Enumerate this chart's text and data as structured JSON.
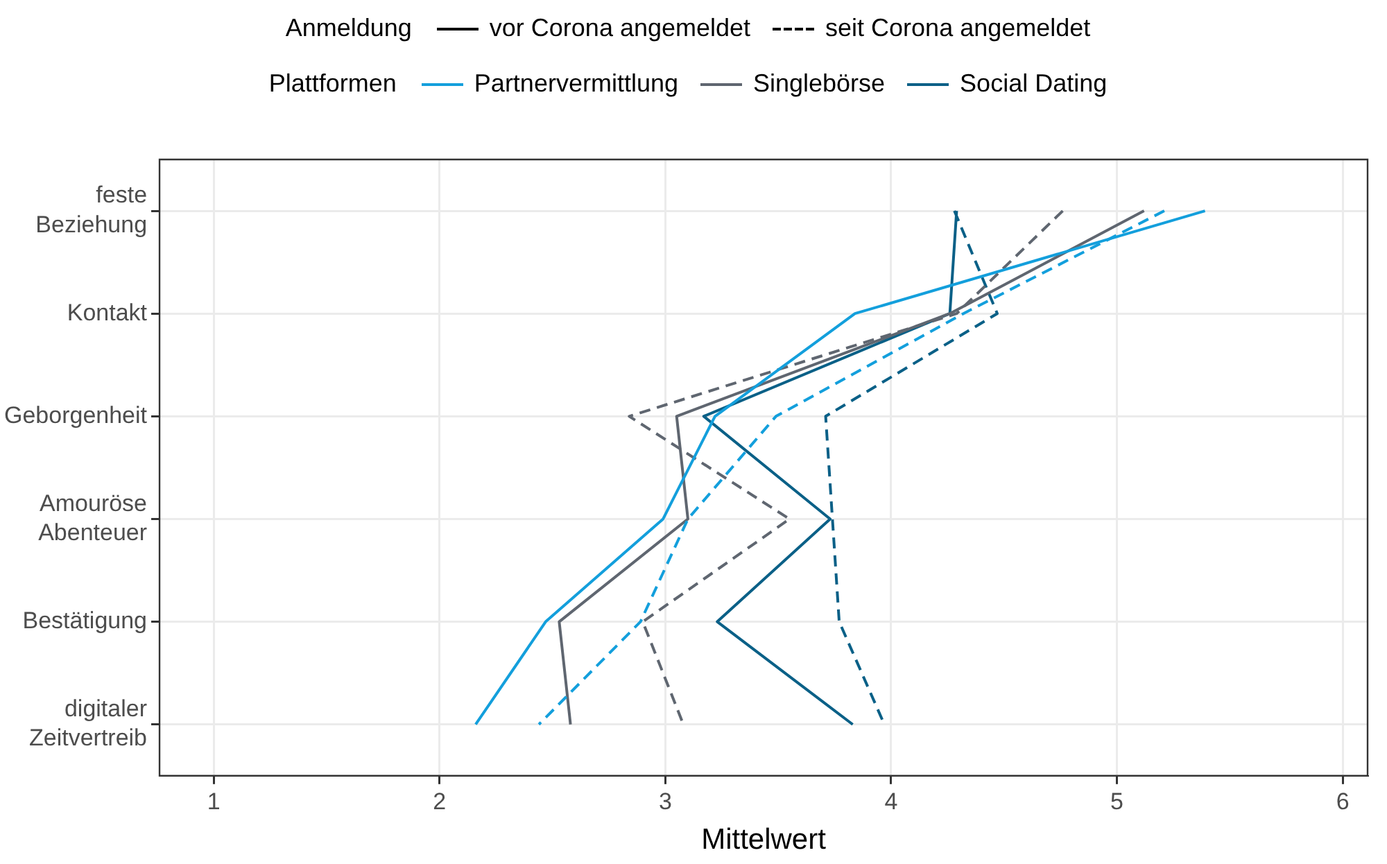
{
  "chart_data": {
    "type": "line",
    "orientation": "horizontal",
    "xlabel": "Mittelwert",
    "legend": "top",
    "legend_title": "Plattformen",
    "grid": true,
    "marker": "none",
    "annotations": [
      "Anmeldung",
      "vor Corona angemeldet",
      "seit Corona angemeldet"
    ],
    "categories": [
      "feste Beziehung",
      "Kontakt",
      "Geborgenheit",
      "Amouröse Abenteuer",
      "Bestätigung",
      "digitaler Zeitvertreib"
    ],
    "xlim": [
      0.76,
      6.11
    ],
    "xticks": [
      1,
      2,
      3,
      4,
      5,
      6
    ],
    "series": [
      {
        "name": "Partnervermittlung",
        "color": "#139fdc",
        "line_style": "solid",
        "values": [
          5.39,
          3.84,
          3.22,
          2.99,
          2.47,
          2.16
        ]
      },
      {
        "color": "#139fdc",
        "line_style": "dashed",
        "values": [
          5.21,
          4.32,
          3.49,
          3.1,
          2.89,
          2.44
        ]
      },
      {
        "name": "Singlebörse",
        "color": "#5f6670",
        "line_style": "solid",
        "values": [
          5.12,
          4.26,
          3.05,
          3.1,
          2.53,
          2.58
        ]
      },
      {
        "color": "#5f6670",
        "line_style": "dashed",
        "values": [
          4.76,
          4.29,
          2.84,
          3.55,
          2.9,
          3.08
        ]
      },
      {
        "name": "Social Dating",
        "color": "#0a6087",
        "line_style": "solid",
        "values": [
          4.29,
          4.26,
          3.17,
          3.73,
          3.23,
          3.83
        ]
      },
      {
        "color": "#0a6087",
        "line_style": "dashed",
        "values": [
          4.28,
          4.47,
          3.71,
          3.74,
          3.77,
          3.97
        ]
      }
    ]
  }
}
